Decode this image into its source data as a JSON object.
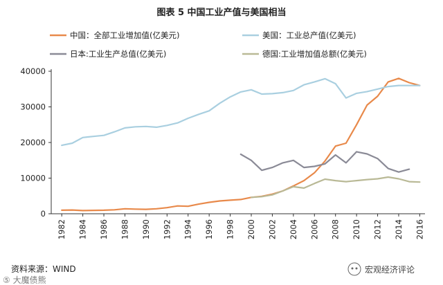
{
  "chart_data": {
    "type": "line",
    "title": "图表 5  中国工业产值与美国相当",
    "x": [
      1982,
      1983,
      1984,
      1985,
      1986,
      1987,
      1988,
      1989,
      1990,
      1991,
      1992,
      1993,
      1994,
      1995,
      1996,
      1997,
      1998,
      1999,
      2000,
      2001,
      2002,
      2003,
      2004,
      2005,
      2006,
      2007,
      2008,
      2009,
      2010,
      2011,
      2012,
      2013,
      2014,
      2015,
      2016
    ],
    "xticks": [
      "1982",
      "1984",
      "1986",
      "1988",
      "1990",
      "1992",
      "1994",
      "1996",
      "1998",
      "2000",
      "2002",
      "2004",
      "2006",
      "2008",
      "2010",
      "2012",
      "2014",
      "2016"
    ],
    "yticks": [
      "0",
      "10000",
      "20000",
      "30000",
      "40000"
    ],
    "ylim": [
      0,
      40000
    ],
    "xlim": [
      1981,
      2016.5
    ],
    "grid": false,
    "legend_position": "top",
    "series": [
      {
        "name": "中国：全部工业增加值(亿美元)",
        "color": "#e8894a",
        "values": [
          1000,
          1050,
          900,
          950,
          1000,
          1100,
          1400,
          1300,
          1250,
          1400,
          1700,
          2200,
          2100,
          2700,
          3200,
          3600,
          3800,
          4000,
          4600,
          4900,
          5500,
          6400,
          7800,
          9300,
          11500,
          14800,
          19000,
          19800,
          25000,
          30500,
          33000,
          37000,
          38000,
          36800,
          36000
        ]
      },
      {
        "name": "美国：工业总产值(亿美元)",
        "color": "#a9cfe0",
        "values": [
          19200,
          19800,
          21400,
          21700,
          22000,
          23000,
          24100,
          24400,
          24500,
          24300,
          24800,
          25500,
          26800,
          27900,
          28900,
          31000,
          32800,
          34200,
          34800,
          33600,
          33700,
          34000,
          34600,
          36200,
          37000,
          37900,
          36500,
          32500,
          33800,
          34300,
          35000,
          35700,
          36000,
          36000,
          36000
        ]
      },
      {
        "name": "日本:工业生产总值(亿美元)",
        "color": "#8a8a96",
        "values": [
          null,
          null,
          null,
          null,
          null,
          null,
          null,
          null,
          null,
          null,
          null,
          null,
          null,
          null,
          null,
          null,
          null,
          16700,
          15000,
          12200,
          13000,
          14300,
          15000,
          13000,
          13300,
          14000,
          16500,
          14300,
          17400,
          16800,
          15500,
          12700,
          11700,
          12500,
          null
        ]
      },
      {
        "name": "德国:工业增加值总额(亿美元)",
        "color": "#b9b996",
        "values": [
          null,
          null,
          null,
          null,
          null,
          null,
          null,
          null,
          null,
          null,
          null,
          null,
          null,
          null,
          null,
          null,
          null,
          null,
          4600,
          4800,
          5300,
          6400,
          7600,
          7200,
          8500,
          9700,
          9300,
          9000,
          9300,
          9600,
          9800,
          10300,
          9800,
          9000,
          8900
        ]
      }
    ]
  },
  "source": "资料来源：WIND",
  "watermark": "宏观经济评论",
  "watermark_left": "⑤ 大魔债熊"
}
